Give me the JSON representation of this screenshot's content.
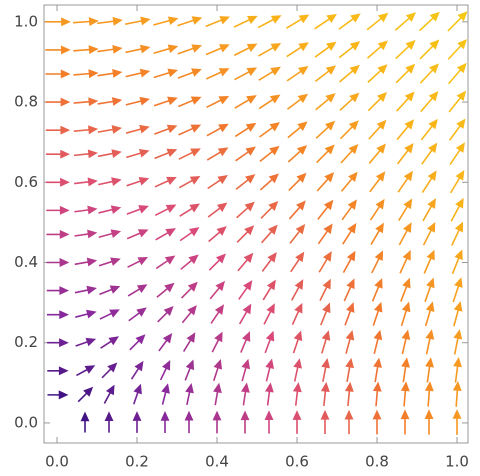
{
  "chart_data": {
    "type": "vector",
    "x": [
      0,
      0.07,
      0.13,
      0.2,
      0.27,
      0.33,
      0.4,
      0.47,
      0.53,
      0.6,
      0.67,
      0.73,
      0.8,
      0.87,
      0.93,
      1
    ],
    "y": [
      0,
      0.07,
      0.13,
      0.2,
      0.27,
      0.33,
      0.4,
      0.47,
      0.53,
      0.6,
      0.67,
      0.73,
      0.8,
      0.87,
      0.93,
      1
    ],
    "u": [
      [
        0,
        0,
        0,
        0,
        0,
        0,
        0,
        0,
        0,
        0,
        0,
        0,
        0,
        0,
        0,
        0
      ],
      [
        0.07,
        0.07,
        0.07,
        0.07,
        0.07,
        0.07,
        0.07,
        0.07,
        0.07,
        0.07,
        0.07,
        0.07,
        0.07,
        0.07,
        0.07,
        0.07
      ],
      [
        0.13,
        0.13,
        0.13,
        0.13,
        0.13,
        0.13,
        0.13,
        0.13,
        0.13,
        0.13,
        0.13,
        0.13,
        0.13,
        0.13,
        0.13,
        0.13
      ],
      [
        0.2,
        0.2,
        0.2,
        0.2,
        0.2,
        0.2,
        0.2,
        0.2,
        0.2,
        0.2,
        0.2,
        0.2,
        0.2,
        0.2,
        0.2,
        0.2
      ],
      [
        0.27,
        0.27,
        0.27,
        0.27,
        0.27,
        0.27,
        0.27,
        0.27,
        0.27,
        0.27,
        0.27,
        0.27,
        0.27,
        0.27,
        0.27,
        0.27
      ],
      [
        0.33,
        0.33,
        0.33,
        0.33,
        0.33,
        0.33,
        0.33,
        0.33,
        0.33,
        0.33,
        0.33,
        0.33,
        0.33,
        0.33,
        0.33,
        0.33
      ],
      [
        0.4,
        0.4,
        0.4,
        0.4,
        0.4,
        0.4,
        0.4,
        0.4,
        0.4,
        0.4,
        0.4,
        0.4,
        0.4,
        0.4,
        0.4,
        0.4
      ],
      [
        0.47,
        0.47,
        0.47,
        0.47,
        0.47,
        0.47,
        0.47,
        0.47,
        0.47,
        0.47,
        0.47,
        0.47,
        0.47,
        0.47,
        0.47,
        0.47
      ],
      [
        0.53,
        0.53,
        0.53,
        0.53,
        0.53,
        0.53,
        0.53,
        0.53,
        0.53,
        0.53,
        0.53,
        0.53,
        0.53,
        0.53,
        0.53,
        0.53
      ],
      [
        0.6,
        0.6,
        0.6,
        0.6,
        0.6,
        0.6,
        0.6,
        0.6,
        0.6,
        0.6,
        0.6,
        0.6,
        0.6,
        0.6,
        0.6,
        0.6
      ],
      [
        0.67,
        0.67,
        0.67,
        0.67,
        0.67,
        0.67,
        0.67,
        0.67,
        0.67,
        0.67,
        0.67,
        0.67,
        0.67,
        0.67,
        0.67,
        0.67
      ],
      [
        0.73,
        0.73,
        0.73,
        0.73,
        0.73,
        0.73,
        0.73,
        0.73,
        0.73,
        0.73,
        0.73,
        0.73,
        0.73,
        0.73,
        0.73,
        0.73
      ],
      [
        0.8,
        0.8,
        0.8,
        0.8,
        0.8,
        0.8,
        0.8,
        0.8,
        0.8,
        0.8,
        0.8,
        0.8,
        0.8,
        0.8,
        0.8,
        0.8
      ],
      [
        0.87,
        0.87,
        0.87,
        0.87,
        0.87,
        0.87,
        0.87,
        0.87,
        0.87,
        0.87,
        0.87,
        0.87,
        0.87,
        0.87,
        0.87,
        0.87
      ],
      [
        0.93,
        0.93,
        0.93,
        0.93,
        0.93,
        0.93,
        0.93,
        0.93,
        0.93,
        0.93,
        0.93,
        0.93,
        0.93,
        0.93,
        0.93,
        0.93
      ],
      [
        1,
        1,
        1,
        1,
        1,
        1,
        1,
        1,
        1,
        1,
        1,
        1,
        1,
        1,
        1,
        1
      ]
    ],
    "v": [
      [
        0,
        0.07,
        0.13,
        0.2,
        0.27,
        0.33,
        0.4,
        0.47,
        0.53,
        0.6,
        0.67,
        0.73,
        0.8,
        0.87,
        0.93,
        1
      ],
      [
        0,
        0.07,
        0.13,
        0.2,
        0.27,
        0.33,
        0.4,
        0.47,
        0.53,
        0.6,
        0.67,
        0.73,
        0.8,
        0.87,
        0.93,
        1
      ],
      [
        0,
        0.07,
        0.13,
        0.2,
        0.27,
        0.33,
        0.4,
        0.47,
        0.53,
        0.6,
        0.67,
        0.73,
        0.8,
        0.87,
        0.93,
        1
      ],
      [
        0,
        0.07,
        0.13,
        0.2,
        0.27,
        0.33,
        0.4,
        0.47,
        0.53,
        0.6,
        0.67,
        0.73,
        0.8,
        0.87,
        0.93,
        1
      ],
      [
        0,
        0.07,
        0.13,
        0.2,
        0.27,
        0.33,
        0.4,
        0.47,
        0.53,
        0.6,
        0.67,
        0.73,
        0.8,
        0.87,
        0.93,
        1
      ],
      [
        0,
        0.07,
        0.13,
        0.2,
        0.27,
        0.33,
        0.4,
        0.47,
        0.53,
        0.6,
        0.67,
        0.73,
        0.8,
        0.87,
        0.93,
        1
      ],
      [
        0,
        0.07,
        0.13,
        0.2,
        0.27,
        0.33,
        0.4,
        0.47,
        0.53,
        0.6,
        0.67,
        0.73,
        0.8,
        0.87,
        0.93,
        1
      ],
      [
        0,
        0.07,
        0.13,
        0.2,
        0.27,
        0.33,
        0.4,
        0.47,
        0.53,
        0.6,
        0.67,
        0.73,
        0.8,
        0.87,
        0.93,
        1
      ],
      [
        0,
        0.07,
        0.13,
        0.2,
        0.27,
        0.33,
        0.4,
        0.47,
        0.53,
        0.6,
        0.67,
        0.73,
        0.8,
        0.87,
        0.93,
        1
      ],
      [
        0,
        0.07,
        0.13,
        0.2,
        0.27,
        0.33,
        0.4,
        0.47,
        0.53,
        0.6,
        0.67,
        0.73,
        0.8,
        0.87,
        0.93,
        1
      ],
      [
        0,
        0.07,
        0.13,
        0.2,
        0.27,
        0.33,
        0.4,
        0.47,
        0.53,
        0.6,
        0.67,
        0.73,
        0.8,
        0.87,
        0.93,
        1
      ],
      [
        0,
        0.07,
        0.13,
        0.2,
        0.27,
        0.33,
        0.4,
        0.47,
        0.53,
        0.6,
        0.67,
        0.73,
        0.8,
        0.87,
        0.93,
        1
      ],
      [
        0,
        0.07,
        0.13,
        0.2,
        0.27,
        0.33,
        0.4,
        0.47,
        0.53,
        0.6,
        0.67,
        0.73,
        0.8,
        0.87,
        0.93,
        1
      ],
      [
        0,
        0.07,
        0.13,
        0.2,
        0.27,
        0.33,
        0.4,
        0.47,
        0.53,
        0.6,
        0.67,
        0.73,
        0.8,
        0.87,
        0.93,
        1
      ],
      [
        0,
        0.07,
        0.13,
        0.2,
        0.27,
        0.33,
        0.4,
        0.47,
        0.53,
        0.6,
        0.67,
        0.73,
        0.8,
        0.87,
        0.93,
        1
      ],
      [
        0,
        0.07,
        0.13,
        0.2,
        0.27,
        0.33,
        0.4,
        0.47,
        0.53,
        0.6,
        0.67,
        0.73,
        0.8,
        0.87,
        0.93,
        1
      ]
    ],
    "colors": [
      "#2a0c7c",
      "#8a2a9c",
      "#d8487a",
      "#f27a2a",
      "#f9b21a",
      "#f5c816"
    ],
    "xlim": [
      -0.0325,
      1.0275
    ],
    "ylim": [
      -0.05,
      1.042
    ],
    "xticks": [
      {
        "value": 0,
        "label": "0.0"
      },
      0.2,
      0.4,
      0.6,
      0.8,
      {
        "value": 1,
        "label": "1.0"
      }
    ],
    "yticks": [
      {
        "value": 0,
        "label": "0.0"
      },
      0.2,
      0.4,
      0.6,
      0.8,
      {
        "value": 1,
        "label": "1.0"
      }
    ]
  }
}
